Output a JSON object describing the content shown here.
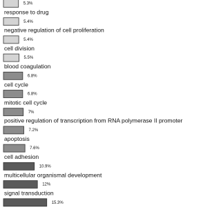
{
  "chart_data": {
    "type": "bar",
    "orientation": "horizontal",
    "categories": [
      null,
      "response to drug",
      "negative regulation of cell proliferation",
      "cell division",
      "blood coagulation",
      "cell cycle",
      "mitotic cell cycle",
      "positive regulation of transcription from RNA polymerase II promoter",
      "apoptosis",
      "cell adhesion",
      "multicellular organismal development",
      "signal transduction"
    ],
    "values": [
      5.3,
      5.4,
      5.4,
      5.5,
      6.8,
      6.8,
      7,
      7.2,
      7.6,
      10.9,
      12,
      15.3
    ],
    "value_labels": [
      "5.3%",
      "5.4%",
      "5.4%",
      "5.5%",
      "6.8%",
      "6.8%",
      "7%",
      "7.2%",
      "7.6%",
      "10.9%",
      "12%",
      "15.3%"
    ],
    "colors": [
      "#d4d4d4",
      "#d4d4d4",
      "#d4d4d4",
      "#d4d4d4",
      "#8c8c8c",
      "#8c8c8c",
      "#8c8c8c",
      "#8c8c8c",
      "#8c8c8c",
      "#5a5a5a",
      "#5a5a5a",
      "#5a5a5a"
    ]
  }
}
